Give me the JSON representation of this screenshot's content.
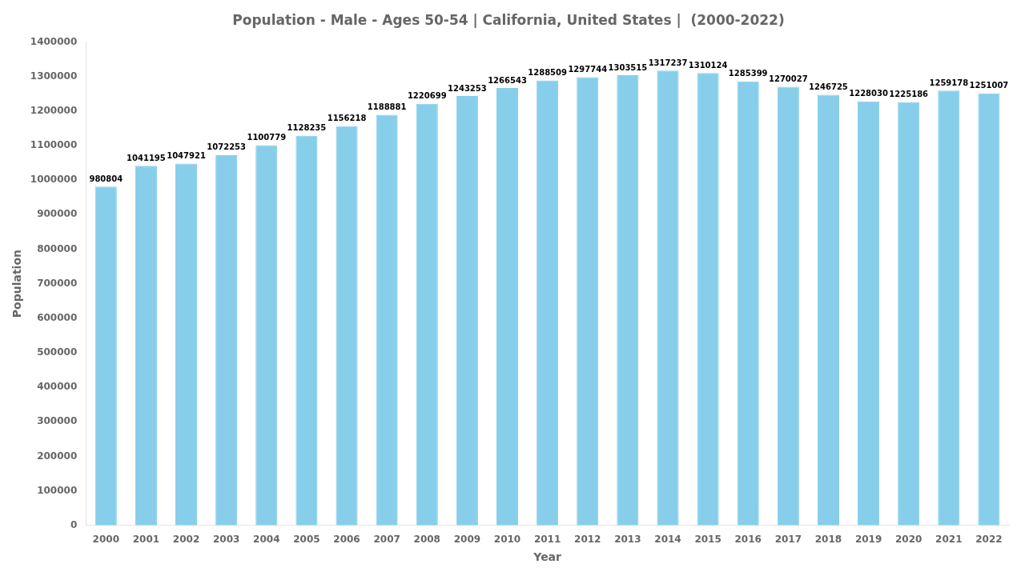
{
  "chart_data": {
    "type": "bar",
    "title": "Population - Male - Ages 50-54 | California, United States |  (2000-2022)",
    "xlabel": "Year",
    "ylabel": "Population",
    "categories": [
      "2000",
      "2001",
      "2002",
      "2003",
      "2004",
      "2005",
      "2006",
      "2007",
      "2008",
      "2009",
      "2010",
      "2011",
      "2012",
      "2013",
      "2014",
      "2015",
      "2016",
      "2017",
      "2018",
      "2019",
      "2020",
      "2021",
      "2022"
    ],
    "values": [
      980804,
      1041195,
      1047921,
      1072253,
      1100779,
      1128235,
      1156218,
      1188881,
      1220699,
      1243253,
      1266543,
      1288509,
      1297744,
      1303515,
      1317237,
      1310124,
      1285399,
      1270027,
      1246725,
      1228030,
      1225186,
      1259178,
      1251007
    ],
    "color": "#87CEEB",
    "ylim": [
      0,
      1400000
    ],
    "yticks": [
      0,
      100000,
      200000,
      300000,
      400000,
      500000,
      600000,
      700000,
      800000,
      900000,
      1000000,
      1100000,
      1200000,
      1300000,
      1400000
    ],
    "grid": false,
    "data_labels": true
  }
}
